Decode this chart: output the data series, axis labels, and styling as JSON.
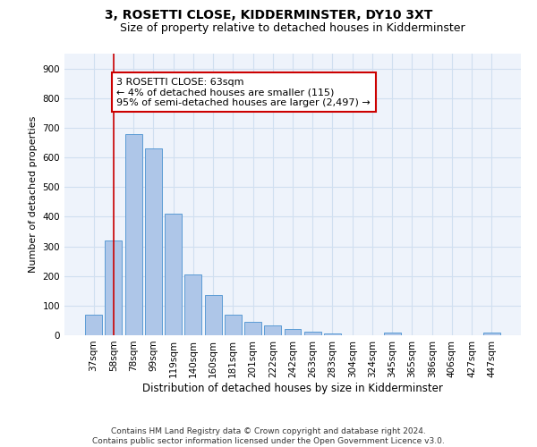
{
  "title": "3, ROSETTI CLOSE, KIDDERMINSTER, DY10 3XT",
  "subtitle": "Size of property relative to detached houses in Kidderminster",
  "xlabel": "Distribution of detached houses by size in Kidderminster",
  "ylabel": "Number of detached properties",
  "categories": [
    "37sqm",
    "58sqm",
    "78sqm",
    "99sqm",
    "119sqm",
    "140sqm",
    "160sqm",
    "181sqm",
    "201sqm",
    "222sqm",
    "242sqm",
    "263sqm",
    "283sqm",
    "304sqm",
    "324sqm",
    "345sqm",
    "365sqm",
    "386sqm",
    "406sqm",
    "427sqm",
    "447sqm"
  ],
  "values": [
    70,
    320,
    680,
    630,
    410,
    205,
    135,
    68,
    45,
    33,
    20,
    12,
    5,
    0,
    0,
    8,
    0,
    0,
    0,
    0,
    10
  ],
  "bar_color": "#aec6e8",
  "bar_edge_color": "#5b9bd5",
  "grid_color": "#d0dff0",
  "background_color": "#eef3fb",
  "annotation_text": "3 ROSETTI CLOSE: 63sqm\n← 4% of detached houses are smaller (115)\n95% of semi-detached houses are larger (2,497) →",
  "annotation_box_color": "#ffffff",
  "annotation_box_edge_color": "#cc0000",
  "vline_x": 1,
  "vline_color": "#cc0000",
  "ylim": [
    0,
    950
  ],
  "yticks": [
    0,
    100,
    200,
    300,
    400,
    500,
    600,
    700,
    800,
    900
  ],
  "footnote_line1": "Contains HM Land Registry data © Crown copyright and database right 2024.",
  "footnote_line2": "Contains public sector information licensed under the Open Government Licence v3.0.",
  "title_fontsize": 10,
  "subtitle_fontsize": 9,
  "xlabel_fontsize": 8.5,
  "ylabel_fontsize": 8,
  "tick_fontsize": 7.5,
  "annot_fontsize": 8,
  "footnote_fontsize": 6.5
}
